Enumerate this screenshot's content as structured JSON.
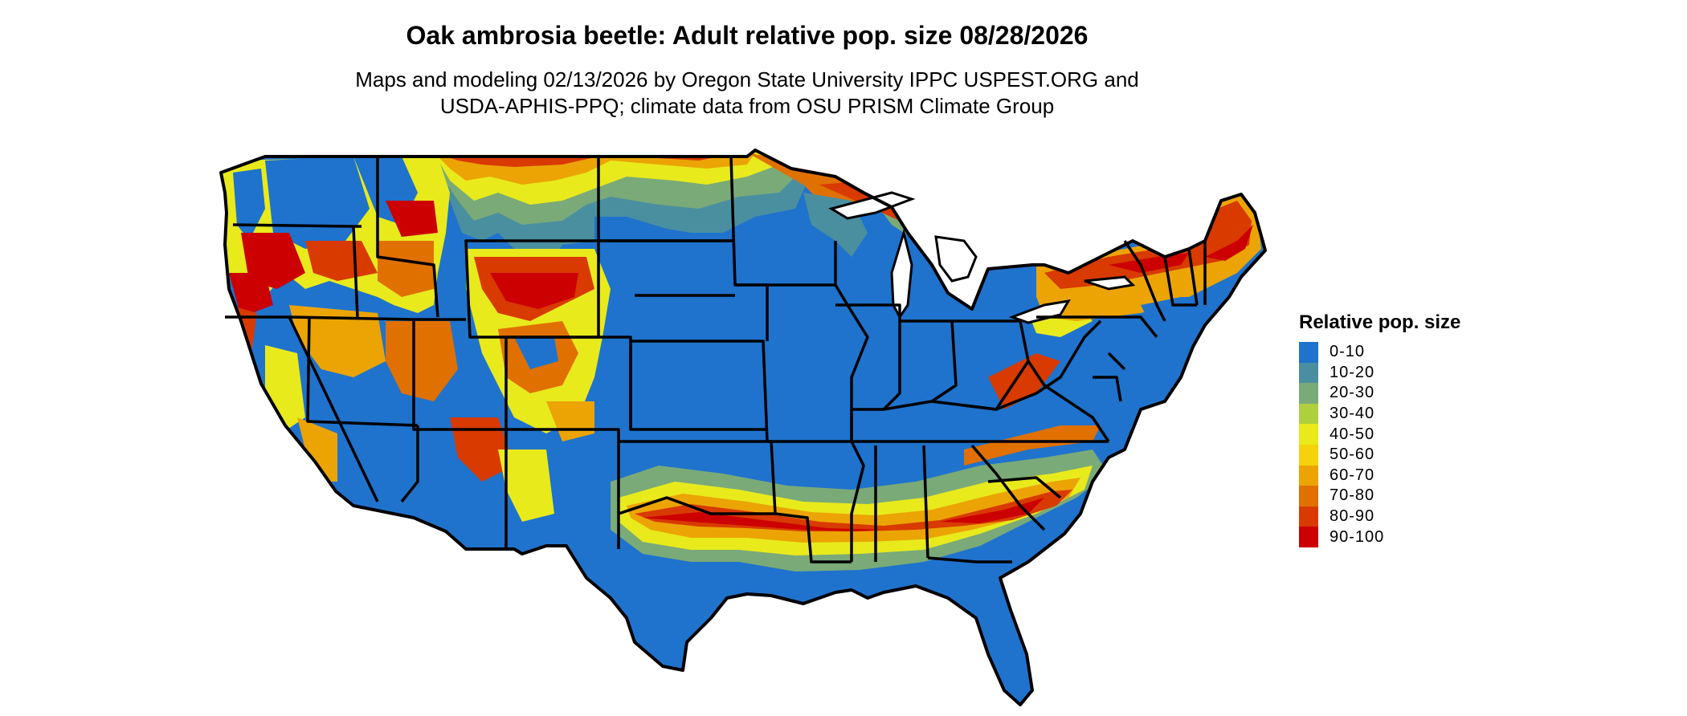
{
  "title": "Oak ambrosia beetle: Adult relative pop. size 08/28/2026",
  "subtitle_line1": "Maps and modeling 02/13/2026 by Oregon State University IPPC USPEST.ORG and",
  "subtitle_line2": "USDA-APHIS-PPQ; climate data from OSU PRISM Climate Group",
  "legend": {
    "title": "Relative pop. size",
    "items": [
      {
        "label": "0-10",
        "color": "#1f73cd"
      },
      {
        "label": "10-20",
        "color": "#4a8fa0"
      },
      {
        "label": "20-30",
        "color": "#7aaa78"
      },
      {
        "label": "30-40",
        "color": "#aecf3e"
      },
      {
        "label": "40-50",
        "color": "#e8ea1c"
      },
      {
        "label": "50-60",
        "color": "#f5d20a"
      },
      {
        "label": "60-70",
        "color": "#eba404"
      },
      {
        "label": "70-80",
        "color": "#e07000"
      },
      {
        "label": "80-90",
        "color": "#d83a00"
      },
      {
        "label": "90-100",
        "color": "#cc0000"
      }
    ]
  }
}
